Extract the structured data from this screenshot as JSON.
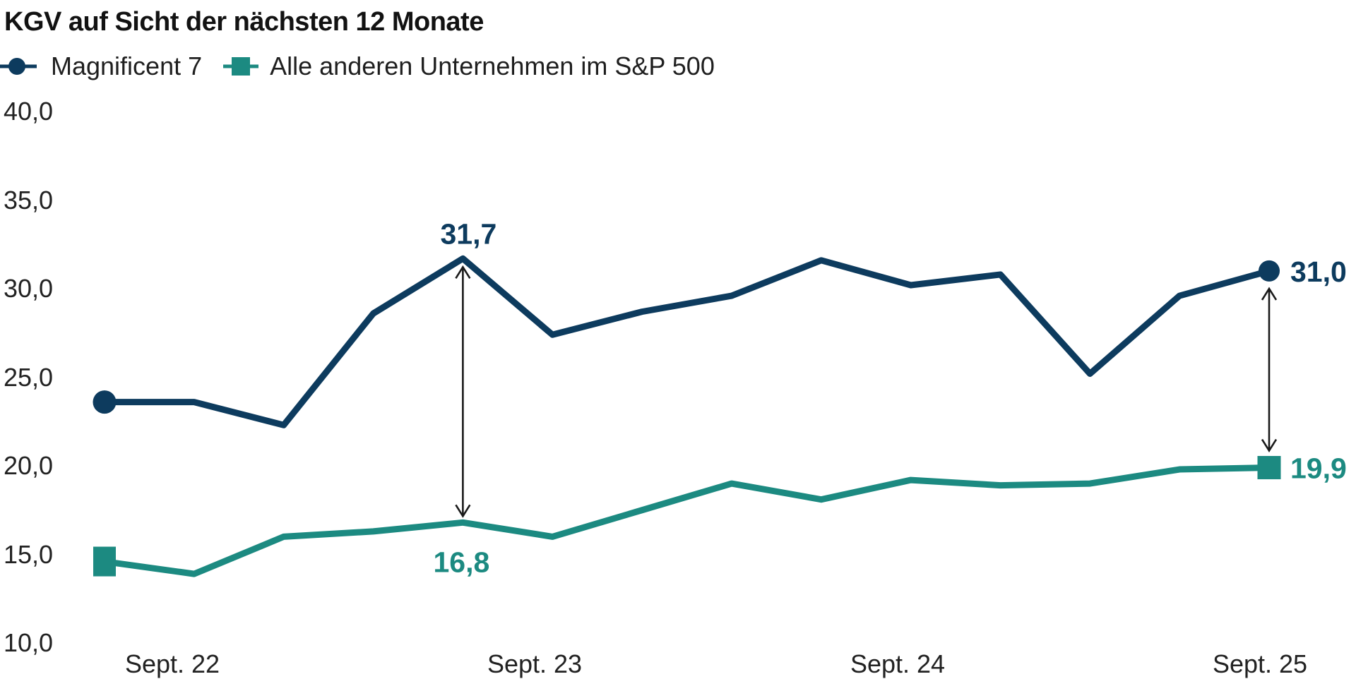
{
  "title": "KGV auf Sicht der nächsten 12 Monate",
  "colors": {
    "series_navy": "#0d3b5e",
    "series_teal": "#1c8a81",
    "label_text": "#222222",
    "title_text": "#121212",
    "arrow": "#1a1a1a",
    "background": "#ffffff"
  },
  "legend": {
    "items": [
      {
        "label": "Magnificent 7",
        "marker": "circle",
        "color": "#0d3b5e"
      },
      {
        "label": "Alle anderen Unternehmen im S&P 500",
        "marker": "square",
        "color": "#1c8a81"
      }
    ]
  },
  "y_axis": {
    "tick_labels": [
      "40,0",
      "35,0",
      "30,0",
      "25,0",
      "20,0",
      "15,0",
      "10,0"
    ]
  },
  "x_axis": {
    "tick_labels": [
      "Sept. 22",
      "Sept. 23",
      "Sept. 24",
      "Sept. 25"
    ]
  },
  "chart_data": {
    "type": "line",
    "title": "KGV auf Sicht der nächsten 12 Monate",
    "frequency": "quarterly",
    "x_tick_labels": [
      "Sept. 22",
      "Sept. 23",
      "Sept. 24",
      "Sept. 25"
    ],
    "y_tick_labels": [
      "40,0",
      "35,0",
      "30,0",
      "25,0",
      "20,0",
      "15,0",
      "10,0"
    ],
    "ylim": [
      10,
      40
    ],
    "grid": false,
    "legend_position": "top-left",
    "series": [
      {
        "name": "Magnificent 7",
        "color": "#0d3b5e",
        "marker": "circle",
        "values": [
          23.6,
          23.6,
          22.3,
          28.6,
          31.7,
          27.4,
          28.7,
          29.6,
          31.6,
          30.2,
          30.8,
          25.2,
          29.6,
          31.0
        ]
      },
      {
        "name": "Alle anderen Unternehmen im S&P 500",
        "color": "#1c8a81",
        "marker": "square",
        "values": [
          14.6,
          13.9,
          16.0,
          16.3,
          16.8,
          16.0,
          17.5,
          19.0,
          18.1,
          19.2,
          18.9,
          19.0,
          19.8,
          19.9
        ]
      }
    ],
    "annotations": [
      {
        "text": "31,7",
        "series_index": 0,
        "point_index": 4,
        "placement": "above"
      },
      {
        "text": "16,8",
        "series_index": 1,
        "point_index": 4,
        "placement": "below"
      },
      {
        "text": "31,0",
        "series_index": 0,
        "point_index": 13,
        "placement": "right"
      },
      {
        "text": "19,9",
        "series_index": 1,
        "point_index": 13,
        "placement": "right"
      }
    ],
    "gap_arrows": [
      {
        "point_index": 4,
        "style": "double-headed"
      },
      {
        "point_index": 13,
        "style": "double-headed"
      }
    ]
  }
}
